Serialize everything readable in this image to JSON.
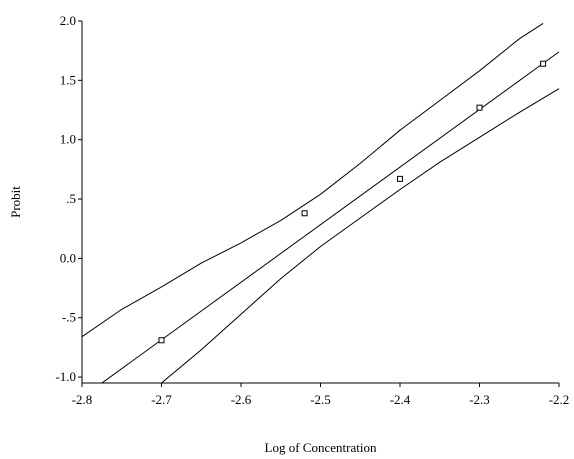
{
  "chart_data": {
    "type": "scatter",
    "xlabel": "Log of Concentration",
    "ylabel": "Probit",
    "xlim": [
      -2.8,
      -2.2
    ],
    "ylim": [
      -1.05,
      2.0
    ],
    "x_ticks": [
      -2.8,
      -2.7,
      -2.6,
      -2.5,
      -2.4,
      -2.3,
      -2.2
    ],
    "x_tick_labels": [
      "-2.8",
      "-2.7",
      "-2.6",
      "-2.5",
      "-2.4",
      "-2.3",
      "-2.2"
    ],
    "y_ticks": [
      2.0,
      1.5,
      1.0,
      0.5,
      0.0,
      -0.5,
      -1.0
    ],
    "y_tick_labels": [
      "2.0",
      "1.5",
      "1.0",
      ".5",
      "0.0",
      "-.5",
      "-1.0"
    ],
    "grid": false,
    "series": [
      {
        "kind": "points",
        "marker": "open-square",
        "x": [
          -2.7,
          -2.52,
          -2.4,
          -2.3,
          -2.22
        ],
        "y": [
          -0.69,
          0.38,
          0.67,
          1.27,
          1.64
        ]
      },
      {
        "kind": "line",
        "x": [
          -2.775,
          -2.2
        ],
        "y": [
          -1.05,
          1.74
        ]
      },
      {
        "kind": "line",
        "x": [
          -2.8,
          -2.75,
          -2.7,
          -2.65,
          -2.6,
          -2.55,
          -2.5,
          -2.45,
          -2.4,
          -2.35,
          -2.3,
          -2.25,
          -2.22
        ],
        "y": [
          -0.66,
          -0.43,
          -0.24,
          -0.04,
          0.13,
          0.32,
          0.54,
          0.8,
          1.08,
          1.33,
          1.58,
          1.85,
          1.98
        ]
      },
      {
        "kind": "line",
        "x": [
          -2.7,
          -2.65,
          -2.6,
          -2.55,
          -2.5,
          -2.45,
          -2.4,
          -2.35,
          -2.3,
          -2.25,
          -2.2
        ],
        "y": [
          -1.05,
          -0.77,
          -0.47,
          -0.17,
          0.1,
          0.34,
          0.58,
          0.81,
          1.02,
          1.23,
          1.43
        ]
      }
    ]
  }
}
